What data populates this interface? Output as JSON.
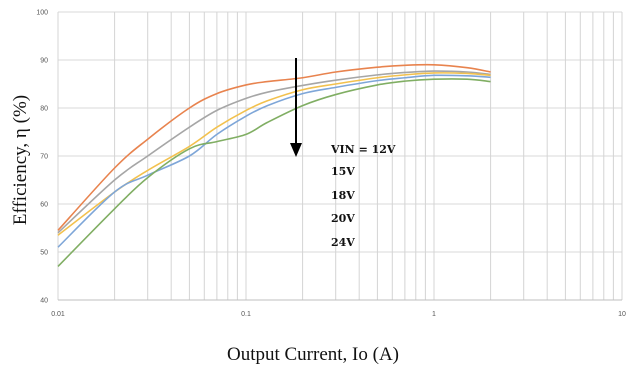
{
  "chart_data": {
    "type": "line",
    "title": "",
    "xlabel": "Output Current, Io (A)",
    "ylabel": "Efficiency, η (%)",
    "x_scale": "log",
    "xlim": [
      0.01,
      10
    ],
    "ylim": [
      40,
      100
    ],
    "x_ticks": [
      0.01,
      0.1,
      1,
      10
    ],
    "x_tick_labels": [
      "0.01",
      "0.1",
      "1",
      "10"
    ],
    "y_ticks": [
      40,
      50,
      60,
      70,
      80,
      90,
      100
    ],
    "y_tick_labels": [
      "40",
      "50",
      "60",
      "70",
      "80",
      "90",
      "100"
    ],
    "grid": true,
    "legend": "none",
    "annotations": [
      "VIN = 12V",
      "15V",
      "18V",
      "20V",
      "24V"
    ],
    "series": [
      {
        "color": "#e8834e",
        "x": [
          0.01,
          0.02,
          0.03,
          0.05,
          0.07,
          0.1,
          0.13,
          0.2,
          0.3,
          0.5,
          0.7,
          1.0,
          1.5,
          2.0
        ],
        "y": [
          54.5,
          67.5,
          73.5,
          80.0,
          83.0,
          84.8,
          85.5,
          86.3,
          87.5,
          88.5,
          88.9,
          89.0,
          88.4,
          87.5
        ]
      },
      {
        "color": "#a6a6a6",
        "x": [
          0.01,
          0.02,
          0.03,
          0.05,
          0.07,
          0.1,
          0.13,
          0.2,
          0.3,
          0.5,
          0.7,
          1.0,
          1.5,
          2.0
        ],
        "y": [
          54.0,
          65.0,
          70.0,
          76.0,
          79.5,
          82.0,
          83.3,
          84.7,
          85.8,
          86.9,
          87.4,
          87.7,
          87.5,
          87.0
        ]
      },
      {
        "color": "#f2c14e",
        "x": [
          0.01,
          0.02,
          0.03,
          0.05,
          0.07,
          0.1,
          0.13,
          0.2,
          0.3,
          0.5,
          0.7,
          1.0,
          1.5,
          2.0
        ],
        "y": [
          53.5,
          62.5,
          67.0,
          72.0,
          76.0,
          79.5,
          81.5,
          83.8,
          85.0,
          86.3,
          86.9,
          87.3,
          87.2,
          86.8
        ]
      },
      {
        "color": "#7ea6d8",
        "x": [
          0.01,
          0.02,
          0.03,
          0.05,
          0.07,
          0.1,
          0.13,
          0.2,
          0.3,
          0.5,
          0.7,
          1.0,
          1.5,
          2.0
        ],
        "y": [
          51.0,
          62.5,
          66.0,
          70.0,
          74.5,
          78.3,
          80.5,
          83.0,
          84.3,
          85.7,
          86.3,
          86.8,
          86.7,
          86.4
        ]
      },
      {
        "color": "#80ae63",
        "x": [
          0.01,
          0.02,
          0.03,
          0.05,
          0.07,
          0.1,
          0.13,
          0.2,
          0.3,
          0.5,
          0.7,
          1.0,
          1.5,
          2.0
        ],
        "y": [
          47.0,
          59.0,
          65.5,
          71.5,
          73.0,
          74.5,
          77.0,
          80.5,
          82.8,
          84.8,
          85.6,
          86.0,
          86.0,
          85.5
        ]
      }
    ]
  }
}
